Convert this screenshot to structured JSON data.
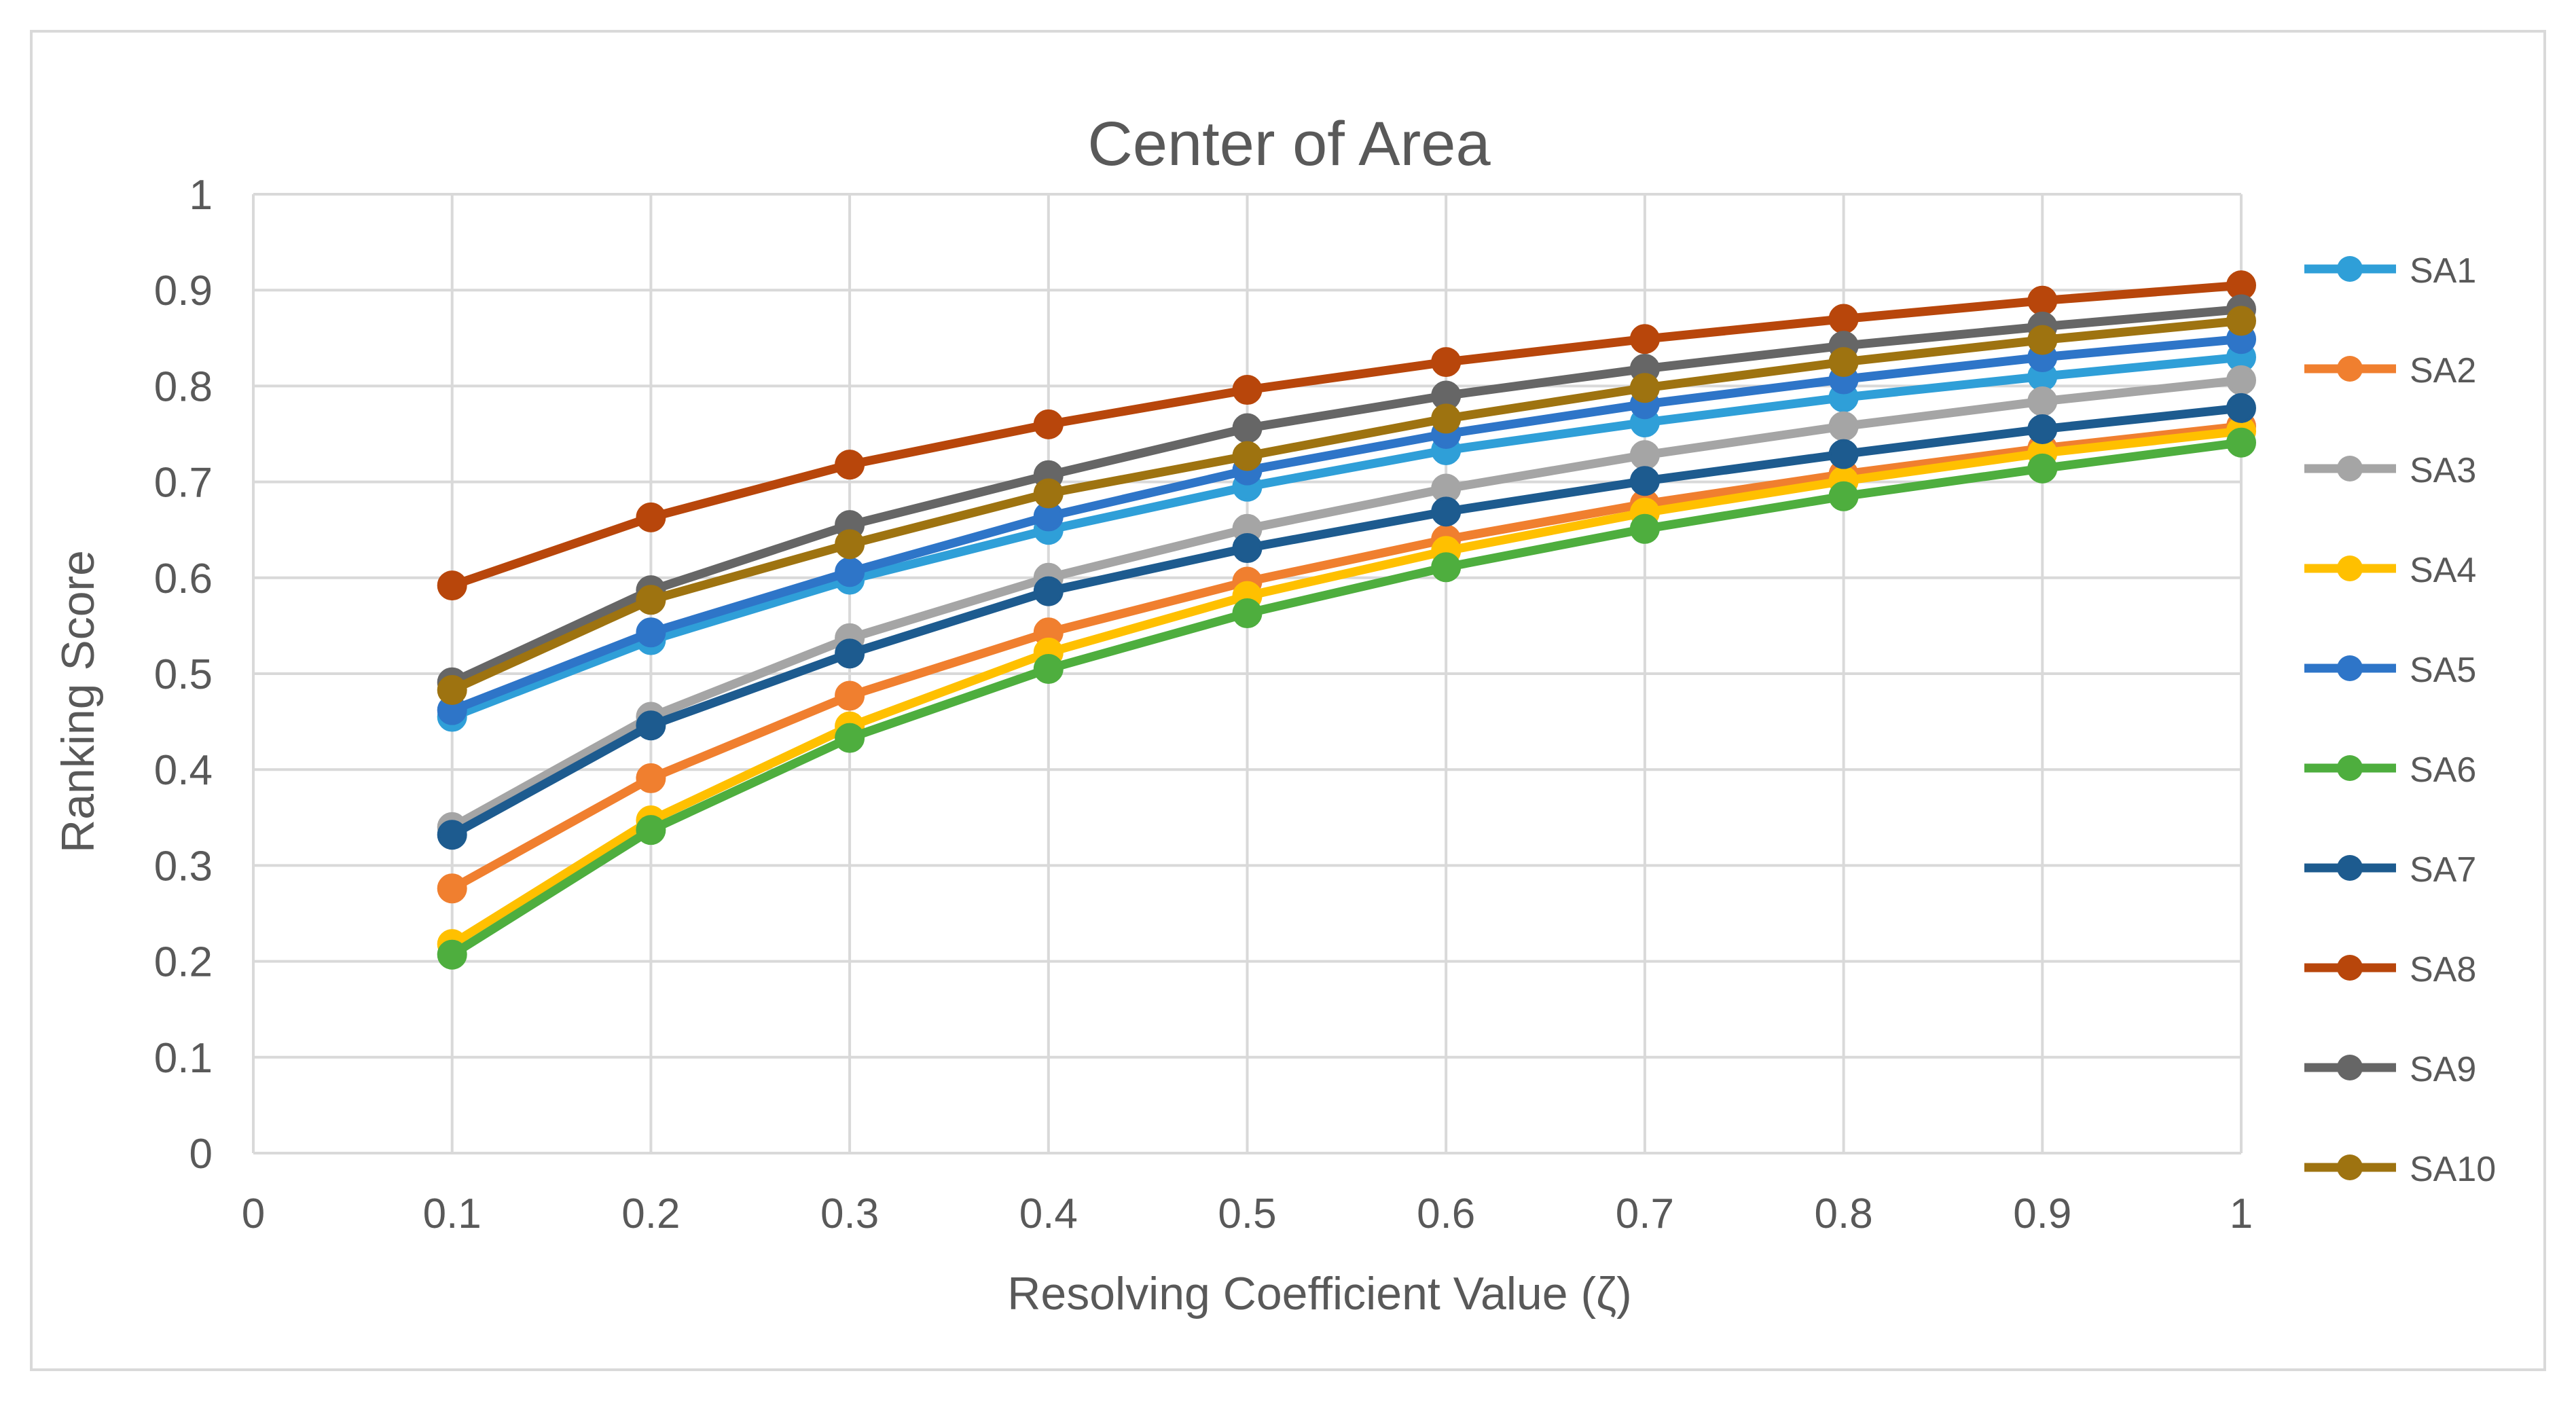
{
  "chart_data": {
    "type": "line",
    "title": "Center of Area",
    "xlabel": "Resolving Coefficient Value (ζ)",
    "ylabel": "Ranking Score",
    "xlim": [
      0,
      1
    ],
    "ylim": [
      0,
      1
    ],
    "x_ticks": [
      "0",
      "0.1",
      "0.2",
      "0.3",
      "0.4",
      "0.5",
      "0.6",
      "0.7",
      "0.8",
      "0.9",
      "1"
    ],
    "y_ticks": [
      "0",
      "0.1",
      "0.2",
      "0.3",
      "0.4",
      "0.5",
      "0.6",
      "0.7",
      "0.8",
      "0.9",
      "1"
    ],
    "grid": true,
    "legend_position": "right",
    "x": [
      0.1,
      0.2,
      0.3,
      0.4,
      0.5,
      0.6,
      0.7,
      0.8,
      0.9,
      1
    ],
    "series": [
      {
        "name": "SA1",
        "color": "#2f9fd8",
        "values": [
          0.455,
          0.535,
          0.598,
          0.65,
          0.695,
          0.733,
          0.762,
          0.788,
          0.81,
          0.83
        ]
      },
      {
        "name": "SA2",
        "color": "#f07f2f",
        "values": [
          0.276,
          0.391,
          0.477,
          0.543,
          0.596,
          0.64,
          0.677,
          0.708,
          0.735,
          0.758
        ]
      },
      {
        "name": "SA3",
        "color": "#a5a5a5",
        "values": [
          0.34,
          0.455,
          0.537,
          0.6,
          0.651,
          0.693,
          0.728,
          0.758,
          0.784,
          0.806
        ]
      },
      {
        "name": "SA4",
        "color": "#ffc000",
        "values": [
          0.218,
          0.347,
          0.445,
          0.522,
          0.581,
          0.628,
          0.668,
          0.701,
          0.73,
          0.753
        ]
      },
      {
        "name": "SA5",
        "color": "#2e75c8",
        "values": [
          0.462,
          0.543,
          0.606,
          0.664,
          0.712,
          0.75,
          0.781,
          0.807,
          0.83,
          0.849
        ]
      },
      {
        "name": "SA6",
        "color": "#4eae3e",
        "values": [
          0.207,
          0.337,
          0.433,
          0.505,
          0.563,
          0.611,
          0.651,
          0.685,
          0.714,
          0.741
        ]
      },
      {
        "name": "SA7",
        "color": "#1d5b8f",
        "values": [
          0.332,
          0.446,
          0.521,
          0.586,
          0.631,
          0.669,
          0.701,
          0.729,
          0.755,
          0.777
        ]
      },
      {
        "name": "SA8",
        "color": "#b8460b",
        "values": [
          0.592,
          0.663,
          0.718,
          0.76,
          0.796,
          0.825,
          0.849,
          0.87,
          0.889,
          0.905
        ]
      },
      {
        "name": "SA9",
        "color": "#666666",
        "values": [
          0.491,
          0.587,
          0.655,
          0.707,
          0.756,
          0.79,
          0.818,
          0.842,
          0.862,
          0.88
        ]
      },
      {
        "name": "SA10",
        "color": "#9e7310",
        "values": [
          0.483,
          0.577,
          0.635,
          0.688,
          0.727,
          0.766,
          0.798,
          0.825,
          0.848,
          0.868
        ]
      }
    ]
  }
}
